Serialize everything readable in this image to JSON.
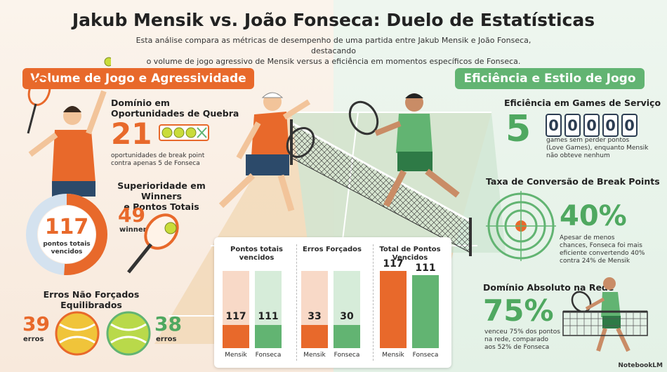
{
  "header": {
    "title": "Jakub Mensik vs. João Fonseca: Duelo de Estatísticas",
    "subtitle_line1": "Esta análise compara as métricas de desempenho de uma partida entre Jakub Mensik e João Fonseca, destacando",
    "subtitle_line2": "o volume de jogo agressivo de Mensik versus a eficiência em momentos específicos de Fonseca."
  },
  "left": {
    "section_title": "Volume de Jogo e Agressividade",
    "break_opps": {
      "title_line1": "Domínio em",
      "title_line2": "Oportunidades de Quebra",
      "value": "21",
      "desc_line1": "oportunidades de break point",
      "desc_line2": "contra apenas 5 de Fonseca"
    },
    "winners": {
      "title_line1": "Superioridade em Winners",
      "title_line2": "e Pontos Totais",
      "total_value": "117",
      "total_label_line1": "pontos totais",
      "total_label_line2": "vencidos",
      "winners_value": "49",
      "winners_label": "winners",
      "ring_fraction": 0.51
    },
    "unforced": {
      "title_line1": "Erros Não Forçados",
      "title_line2": "Equilibrados",
      "mensik_value": "39",
      "mensik_label": "erros",
      "fonseca_value": "38",
      "fonseca_label": "erros"
    }
  },
  "right": {
    "section_title": "Eficiência e Estilo de Jogo",
    "service": {
      "title": "Eficiência em Games de Serviço",
      "value": "5",
      "digits": [
        "0",
        "0",
        "0",
        "0",
        "0"
      ],
      "desc_line1": "games sem perder pontos",
      "desc_line2": "(Love Games), enquanto Mensik",
      "desc_line3": "não obteve nenhum"
    },
    "conversion": {
      "title": "Taxa de Conversão de Break Points",
      "value": "40%",
      "desc_line1": "Apesar de menos",
      "desc_line2": "chances, Fonseca foi mais",
      "desc_line3": "eficiente convertendo 40%",
      "desc_line4": "contra 24% de Mensik"
    },
    "net": {
      "title": "Domínio Absoluto na Rede",
      "value": "75%",
      "desc_line1": "venceu 75% dos pontos",
      "desc_line2": "na rede, comparado",
      "desc_line3": "aos 52% de Fonseca"
    }
  },
  "chart_data": [
    {
      "type": "bar",
      "title": "Pontos totais vencidos",
      "categories": [
        "Mensik",
        "Fonseca"
      ],
      "values": [
        117,
        111
      ],
      "colors": [
        "#e8692b",
        "#62b472"
      ]
    },
    {
      "type": "bar",
      "title": "Erros Forçados",
      "categories": [
        "Mensik",
        "Fonseca"
      ],
      "values": [
        33,
        30
      ],
      "colors": [
        "#e8692b",
        "#62b472"
      ]
    },
    {
      "type": "bar",
      "title": "Total de Pontos Vencidos",
      "categories": [
        "Mensik",
        "Fonseca"
      ],
      "values": [
        117,
        111
      ],
      "colors": [
        "#e8692b",
        "#62b472"
      ]
    }
  ],
  "colors": {
    "orange": "#e8692b",
    "green": "#62b472",
    "navy": "#2c3d52"
  },
  "branding": {
    "logo": "NotebookLM"
  }
}
